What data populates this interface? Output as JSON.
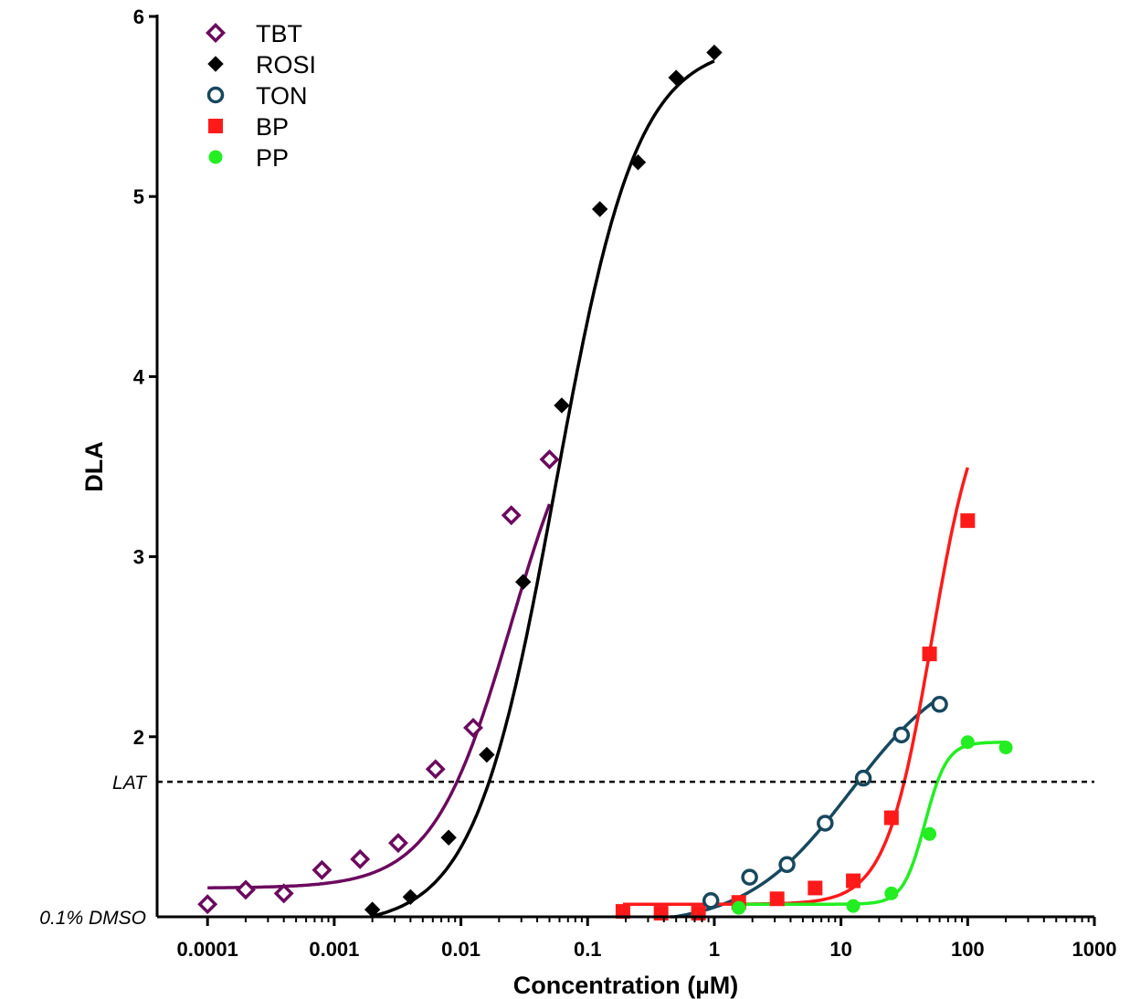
{
  "chart_data": {
    "type": "scatter",
    "xlabel": "Concentration (µM)",
    "ylabel": "DLA",
    "xscale": "log",
    "xlim": [
      4e-05,
      1000
    ],
    "ylim": [
      1,
      6
    ],
    "x_ticks": [
      {
        "value": 0.0001,
        "label": "0.0001"
      },
      {
        "value": 0.001,
        "label": "0.001"
      },
      {
        "value": 0.01,
        "label": "0.01"
      },
      {
        "value": 0.1,
        "label": "0.1"
      },
      {
        "value": 1,
        "label": "1"
      },
      {
        "value": 10,
        "label": "10"
      },
      {
        "value": 100,
        "label": "100"
      },
      {
        "value": 1000,
        "label": "1000"
      }
    ],
    "y_ticks": [
      {
        "value": 2,
        "label": "2"
      },
      {
        "value": 3,
        "label": "3"
      },
      {
        "value": 4,
        "label": "4"
      },
      {
        "value": 5,
        "label": "5"
      },
      {
        "value": 6,
        "label": "6"
      }
    ],
    "reference_lines": [
      {
        "y": 1.75,
        "label": "LAT",
        "style": "dashed"
      },
      {
        "y": 1,
        "label": "0.1% DMSO",
        "style": "axis"
      }
    ],
    "legend": {
      "placement": "top-left"
    },
    "series": [
      {
        "name": "TBT",
        "marker": "open-diamond",
        "color": "#6b0a5e",
        "points": [
          {
            "x": 0.0001,
            "y": 1.07
          },
          {
            "x": 0.0002,
            "y": 1.15
          },
          {
            "x": 0.0004,
            "y": 1.13
          },
          {
            "x": 0.0008,
            "y": 1.26
          },
          {
            "x": 0.0016,
            "y": 1.32
          },
          {
            "x": 0.0032,
            "y": 1.41
          },
          {
            "x": 0.0063,
            "y": 1.82
          },
          {
            "x": 0.0125,
            "y": 2.05
          },
          {
            "x": 0.025,
            "y": 3.23
          },
          {
            "x": 0.05,
            "y": 3.54
          }
        ],
        "fit": {
          "bottom": 1.16,
          "top": 4.1,
          "ec50": 0.025,
          "hill": 1.4,
          "x_range": [
            0.0001,
            0.05
          ]
        }
      },
      {
        "name": "ROSI",
        "marker": "filled-diamond",
        "color": "#000000",
        "points": [
          {
            "x": 0.002,
            "y": 1.04
          },
          {
            "x": 0.004,
            "y": 1.11
          },
          {
            "x": 0.008,
            "y": 1.44
          },
          {
            "x": 0.016,
            "y": 1.9
          },
          {
            "x": 0.031,
            "y": 2.86
          },
          {
            "x": 0.0625,
            "y": 3.84
          },
          {
            "x": 0.125,
            "y": 4.93
          },
          {
            "x": 0.25,
            "y": 5.19
          },
          {
            "x": 0.5,
            "y": 5.66
          },
          {
            "x": 1,
            "y": 5.8
          }
        ],
        "fit": {
          "bottom": 0.95,
          "top": 5.85,
          "ec50": 0.056,
          "hill": 1.35,
          "x_range": [
            0.002,
            1
          ]
        }
      },
      {
        "name": "TON",
        "marker": "open-circle",
        "color": "#17485e",
        "points": [
          {
            "x": 0.94,
            "y": 1.09
          },
          {
            "x": 1.9,
            "y": 1.22
          },
          {
            "x": 3.75,
            "y": 1.29
          },
          {
            "x": 7.5,
            "y": 1.52
          },
          {
            "x": 15,
            "y": 1.77
          },
          {
            "x": 30,
            "y": 2.01
          },
          {
            "x": 60,
            "y": 2.18
          }
        ],
        "fit": {
          "bottom": 0.95,
          "top": 2.45,
          "ec50": 12,
          "hill": 1.05,
          "x_range": [
            0.45,
            60
          ]
        }
      },
      {
        "name": "BP",
        "marker": "filled-square",
        "color": "#ff1a1a",
        "points": [
          {
            "x": 0.19,
            "y": 1.03
          },
          {
            "x": 0.38,
            "y": 1.02
          },
          {
            "x": 0.75,
            "y": 1.02
          },
          {
            "x": 1.56,
            "y": 1.08
          },
          {
            "x": 3.13,
            "y": 1.1
          },
          {
            "x": 6.25,
            "y": 1.16
          },
          {
            "x": 12.5,
            "y": 1.2
          },
          {
            "x": 25,
            "y": 1.55
          },
          {
            "x": 50,
            "y": 2.46
          },
          {
            "x": 100,
            "y": 3.2
          }
        ],
        "fit": {
          "bottom": 1.07,
          "top": 4.0,
          "ec50": 52,
          "hill": 2.4,
          "x_range": [
            0.19,
            100
          ]
        }
      },
      {
        "name": "PP",
        "marker": "filled-circle",
        "color": "#22ee22",
        "points": [
          {
            "x": 1.56,
            "y": 1.05
          },
          {
            "x": 12.5,
            "y": 1.06
          },
          {
            "x": 25,
            "y": 1.13
          },
          {
            "x": 50,
            "y": 1.46
          },
          {
            "x": 100,
            "y": 1.97
          },
          {
            "x": 200,
            "y": 1.94
          }
        ],
        "fit": {
          "bottom": 1.07,
          "top": 1.97,
          "ec50": 46,
          "hill": 5,
          "x_range": [
            1.56,
            200
          ]
        }
      }
    ]
  }
}
